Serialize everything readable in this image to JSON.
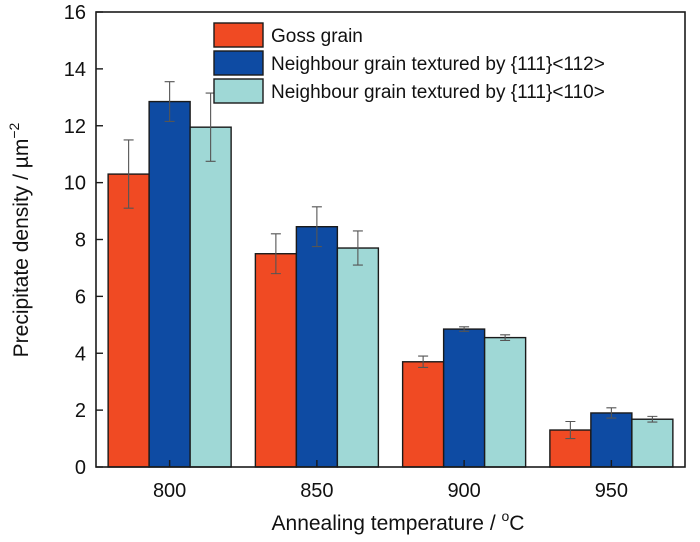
{
  "chart_data": {
    "type": "bar",
    "xlabel_text": "Annealing temperature / ",
    "xlabel_sup": "o",
    "xlabel_unit": "C",
    "ylabel_text": "Precipitate density / µm",
    "ylabel_sup": "−2",
    "categories": [
      "800",
      "850",
      "900",
      "950"
    ],
    "ylim": [
      0,
      16
    ],
    "yticks": [
      "0",
      "2",
      "4",
      "6",
      "8",
      "10",
      "12",
      "14",
      "16"
    ],
    "legend_position": "top-right",
    "grid": false,
    "series": [
      {
        "name": "Goss grain",
        "color": "#f04a23",
        "values": [
          10.3,
          7.5,
          3.7,
          1.3
        ],
        "errors": [
          1.2,
          0.7,
          0.2,
          0.3
        ]
      },
      {
        "name": "Neighbour grain textured by {111}<112>",
        "color": "#0e4ba3",
        "values": [
          12.85,
          8.45,
          4.85,
          1.9
        ],
        "errors": [
          0.7,
          0.7,
          0.08,
          0.18
        ]
      },
      {
        "name": "Neighbour grain textured by {111}<110>",
        "color": "#9fd8d6",
        "values": [
          11.95,
          7.7,
          4.55,
          1.68
        ],
        "errors": [
          1.2,
          0.6,
          0.1,
          0.1
        ]
      }
    ]
  }
}
